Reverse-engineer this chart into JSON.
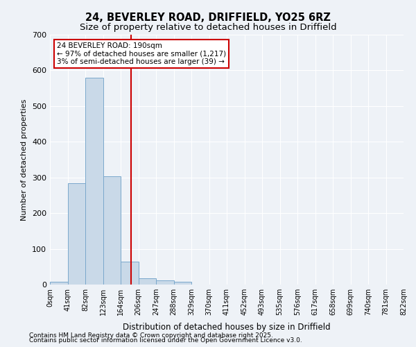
{
  "title1": "24, BEVERLEY ROAD, DRIFFIELD, YO25 6RZ",
  "title2": "Size of property relative to detached houses in Driffield",
  "xlabel": "Distribution of detached houses by size in Driffield",
  "ylabel": "Number of detached properties",
  "bin_labels": [
    "0sqm",
    "41sqm",
    "82sqm",
    "123sqm",
    "164sqm",
    "206sqm",
    "247sqm",
    "288sqm",
    "329sqm",
    "370sqm",
    "411sqm",
    "452sqm",
    "493sqm",
    "535sqm",
    "576sqm",
    "617sqm",
    "658sqm",
    "699sqm",
    "740sqm",
    "781sqm",
    "822sqm"
  ],
  "bar_heights": [
    8,
    283,
    580,
    303,
    65,
    18,
    12,
    8,
    0,
    0,
    0,
    0,
    0,
    0,
    0,
    0,
    0,
    0,
    0,
    0
  ],
  "bar_color": "#c9d9e8",
  "bar_edge_color": "#7aa8cc",
  "vline_x": 4.57,
  "vline_color": "#cc0000",
  "annotation_text": "24 BEVERLEY ROAD: 190sqm\n← 97% of detached houses are smaller (1,217)\n3% of semi-detached houses are larger (39) →",
  "annotation_box_color": "#cc0000",
  "ylim": [
    0,
    700
  ],
  "yticks": [
    0,
    100,
    200,
    300,
    400,
    500,
    600,
    700
  ],
  "footnote1": "Contains HM Land Registry data © Crown copyright and database right 2025.",
  "footnote2": "Contains public sector information licensed under the Open Government Licence v3.0.",
  "bg_color": "#eef2f7",
  "plot_bg_color": "#eef2f7"
}
